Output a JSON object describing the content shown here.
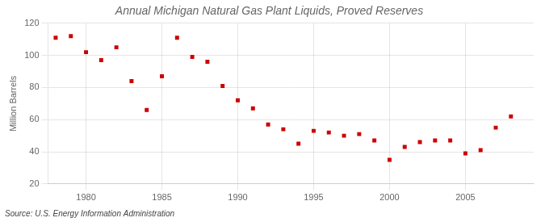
{
  "chart_data": {
    "type": "scatter",
    "title": "Annual Michigan Natural Gas Plant Liquids, Proved Reserves",
    "ylabel": "Million Barrels",
    "annotation": "Source: U.S. Energy Information Administration",
    "x": [
      1978,
      1979,
      1980,
      1981,
      1982,
      1983,
      1984,
      1985,
      1986,
      1987,
      1988,
      1989,
      1990,
      1991,
      1992,
      1993,
      1994,
      1995,
      1996,
      1997,
      1998,
      1999,
      2000,
      2001,
      2002,
      2003,
      2004,
      2005,
      2006,
      2007,
      2008
    ],
    "values": [
      111,
      112,
      102,
      97,
      105,
      84,
      66,
      87,
      111,
      99,
      96,
      81,
      72,
      67,
      57,
      54,
      45,
      53,
      52,
      50,
      51,
      47,
      35,
      43,
      46,
      47,
      47,
      39,
      41,
      55,
      62
    ],
    "color": "#cc0000",
    "marker": "square",
    "xlim": [
      1977.5,
      2009.5
    ],
    "xticks": [
      1980,
      1985,
      1990,
      1995,
      2000,
      2005
    ],
    "ylim": [
      20,
      120
    ],
    "yticks": [
      20,
      40,
      60,
      80,
      100,
      120
    ],
    "grid": true
  }
}
